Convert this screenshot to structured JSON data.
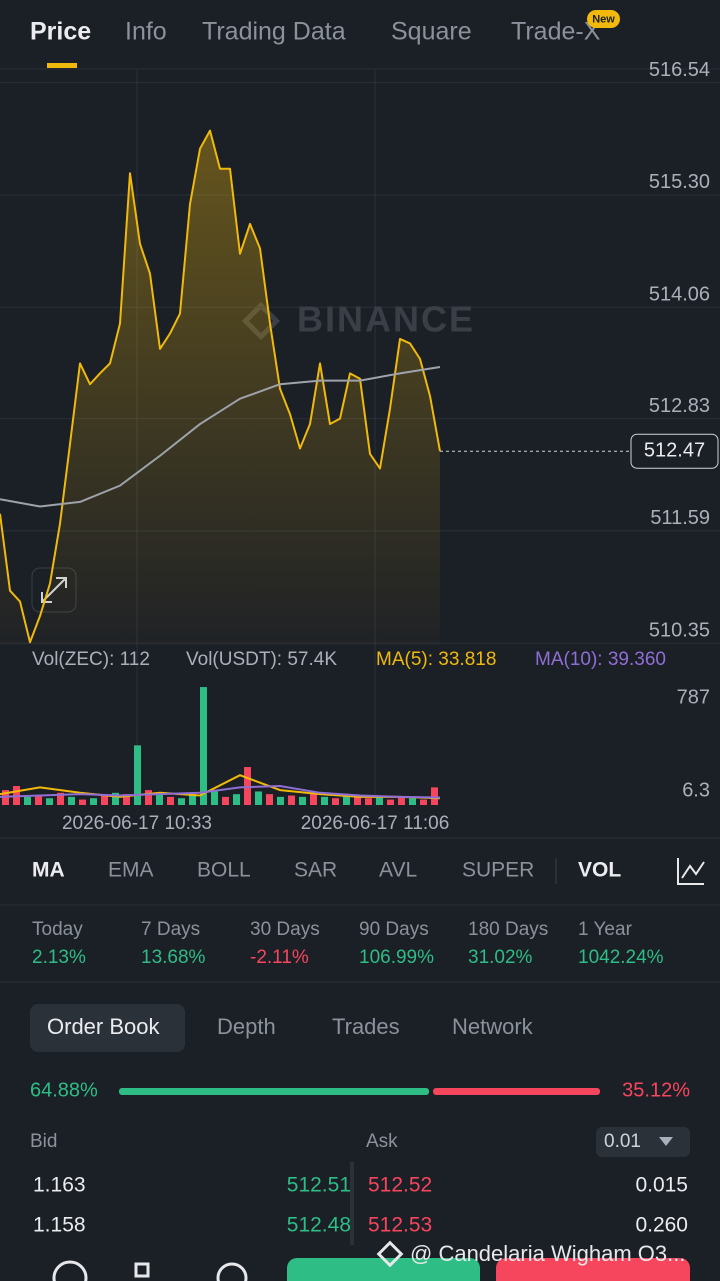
{
  "tabs": {
    "items": [
      "Price",
      "Info",
      "Trading Data",
      "Square",
      "Trade-X"
    ],
    "badge": "New"
  },
  "price_chart": {
    "type": "line",
    "ylim": [
      510.33,
      516.68
    ],
    "yticks": [
      516.54,
      {
        "value": 515.3,
        "label": "515.30"
      },
      514.06,
      512.83,
      511.59,
      510.35
    ],
    "grid": true,
    "watermark": "BINANCE",
    "series": [
      {
        "color": "#f0b90b",
        "values": [
          511.78,
          510.93,
          510.81,
          510.36,
          510.65,
          511.01,
          511.67,
          512.55,
          513.44,
          513.21,
          513.33,
          513.44,
          513.88,
          515.54,
          514.76,
          514.43,
          513.6,
          513.77,
          513.99,
          515.2,
          515.81,
          516.01,
          515.59,
          515.59,
          514.65,
          514.98,
          514.71,
          513.88,
          513.16,
          512.88,
          512.5,
          512.77,
          513.44,
          512.77,
          512.83,
          513.33,
          513.27,
          512.44,
          512.28,
          512.94,
          513.71,
          513.66,
          513.49,
          513.08,
          512.47
        ]
      },
      {
        "color": "#9ea3ab",
        "values": [
          511.94,
          511.86,
          511.91,
          512.09,
          512.42,
          512.77,
          513.05,
          513.21,
          513.25,
          513.25,
          513.33,
          513.4
        ]
      }
    ],
    "last_price": 512.47,
    "times": [
      "2026-06-17 10:33",
      "2026-06-17 11:06"
    ]
  },
  "volume_chart": {
    "type": "bar",
    "legend": [
      "Vol(ZEC): 112",
      "Vol(USDT): 57.4K",
      "MA(5): 33.818",
      "MA(10): 39.360"
    ],
    "legend_colors": [
      "#aab0ba",
      "#aab0ba",
      "#f0b90b",
      "#8f6ed5"
    ],
    "ylim": [
      0,
      900
    ],
    "yticks": [
      787,
      6.3
    ],
    "values": [
      110,
      140,
      60,
      70,
      50,
      90,
      60,
      40,
      50,
      70,
      90,
      80,
      440,
      110,
      90,
      60,
      50,
      80,
      870,
      110,
      60,
      80,
      280,
      100,
      80,
      60,
      70,
      60,
      90,
      60,
      50,
      70,
      60,
      50,
      60,
      40,
      60,
      50,
      40,
      130
    ],
    "colors": [
      "#f6465d",
      "#f6465d",
      "#2ebd85",
      "#f6465d",
      "#2ebd85",
      "#f6465d",
      "#2ebd85",
      "#f6465d",
      "#2ebd85",
      "#f6465d",
      "#2ebd85",
      "#f6465d",
      "#2ebd85",
      "#f6465d",
      "#2ebd85",
      "#f6465d",
      "#2ebd85",
      "#2ebd85",
      "#2ebd85",
      "#2ebd85",
      "#f6465d",
      "#2ebd85",
      "#f6465d",
      "#2ebd85",
      "#f6465d",
      "#2ebd85",
      "#f6465d",
      "#2ebd85",
      "#f6465d",
      "#2ebd85",
      "#f6465d",
      "#2ebd85",
      "#f6465d",
      "#f6465d",
      "#2ebd85",
      "#f6465d",
      "#f6465d",
      "#2ebd85",
      "#f6465d",
      "#f6465d"
    ],
    "lines": [
      {
        "color": "#f0b90b",
        "values": [
          80,
          130,
          90,
          60,
          90,
          70,
          220,
          110,
          80,
          60,
          60,
          50
        ]
      },
      {
        "color": "#8f6ed5",
        "values": [
          60,
          70,
          80,
          70,
          80,
          90,
          130,
          140,
          90,
          70,
          60,
          55
        ]
      }
    ]
  },
  "indicators": {
    "main": [
      "MA",
      "EMA",
      "BOLL",
      "SAR",
      "AVL",
      "SUPER"
    ],
    "sub": [
      "VOL"
    ]
  },
  "performance": [
    {
      "period": "Today",
      "change": "2.13%"
    },
    {
      "period": "7 Days",
      "change": "13.68%"
    },
    {
      "period": "30 Days",
      "change": "-2.11%"
    },
    {
      "period": "90 Days",
      "change": "106.99%"
    },
    {
      "period": "180 Days",
      "change": "31.02%"
    },
    {
      "period": "1 Year",
      "change": "1042.24%"
    }
  ],
  "order_book": {
    "tabs": [
      "Order Book",
      "Depth",
      "Trades",
      "Network"
    ],
    "ratio": {
      "values": [
        64.88,
        35.12
      ],
      "value_labels": [
        "64.88%",
        "35.12%"
      ]
    },
    "headers": [
      "Bid",
      "Ask"
    ],
    "precision": "0.01",
    "rows": [
      [
        "1.163",
        "512.51",
        "512.52",
        "0.015"
      ],
      [
        "1.158",
        "512.48",
        "512.53",
        "0.260"
      ]
    ]
  },
  "footer": {
    "watermark": "@ Candelaria Wigham O3..."
  }
}
